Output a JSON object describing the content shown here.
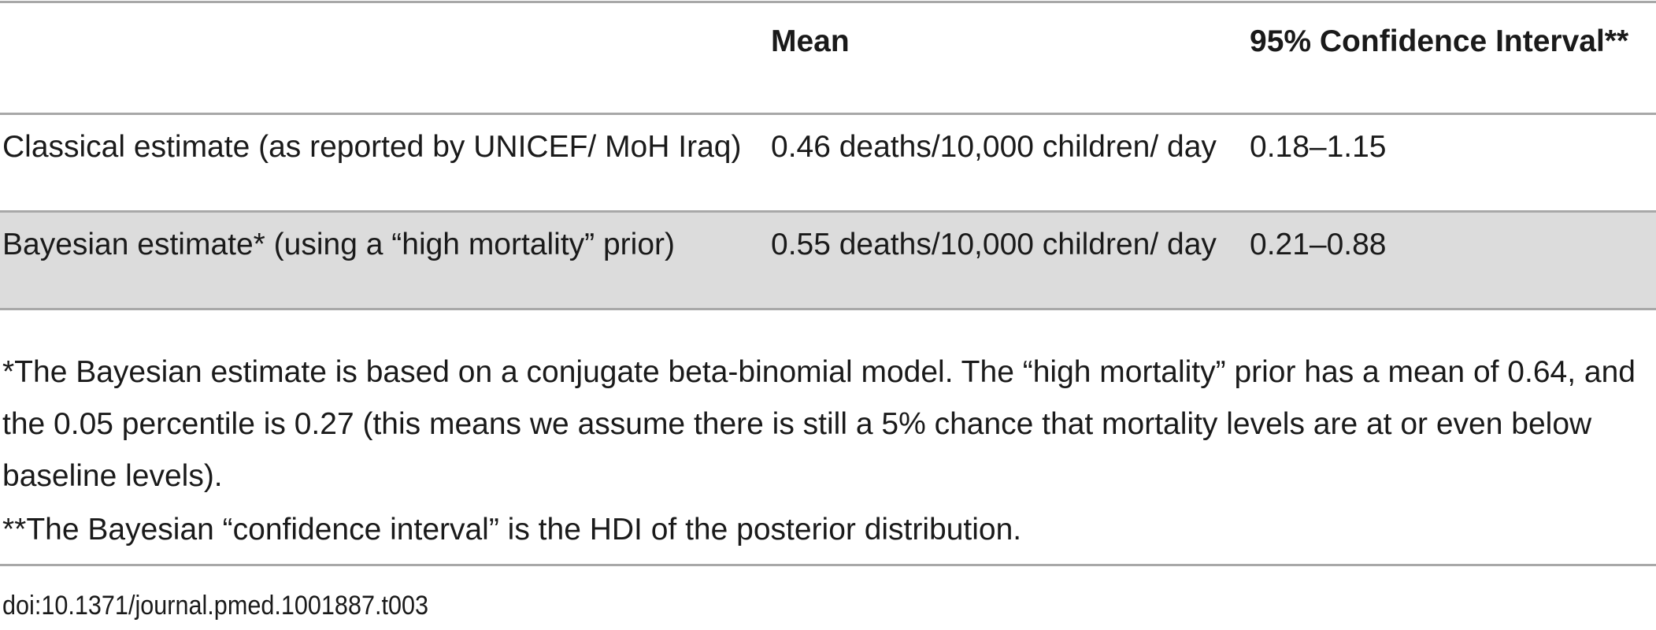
{
  "table": {
    "headers": [
      "",
      "Mean",
      "95% Confidence Interval**"
    ],
    "rows": [
      {
        "label": "Classical estimate (as reported by UNICEF/ MoH Iraq)",
        "mean": "0.46 deaths/10,000 children/ day",
        "ci": "0.18–1.15"
      },
      {
        "label": "Bayesian estimate* (using a “high mortality” prior)",
        "mean": "0.55 deaths/10,000 children/ day",
        "ci": "0.21–0.88"
      }
    ]
  },
  "footnotes": {
    "note1": "*The Bayesian estimate is based on a conjugate beta-binomial model. The “high mortality” prior has a mean of 0.64, and the 0.05 percentile is 0.27 (this means we assume there is still a 5% chance that mortality levels are at or even below baseline levels).",
    "note2": "**The Bayesian “confidence interval” is the HDI of the posterior distribution."
  },
  "doi": "doi:10.1371/journal.pmed.1001887.t003",
  "colors": {
    "rule": "#a8a8a8",
    "shaded_row": "#dcdcdc",
    "text": "#1a1a1a"
  }
}
